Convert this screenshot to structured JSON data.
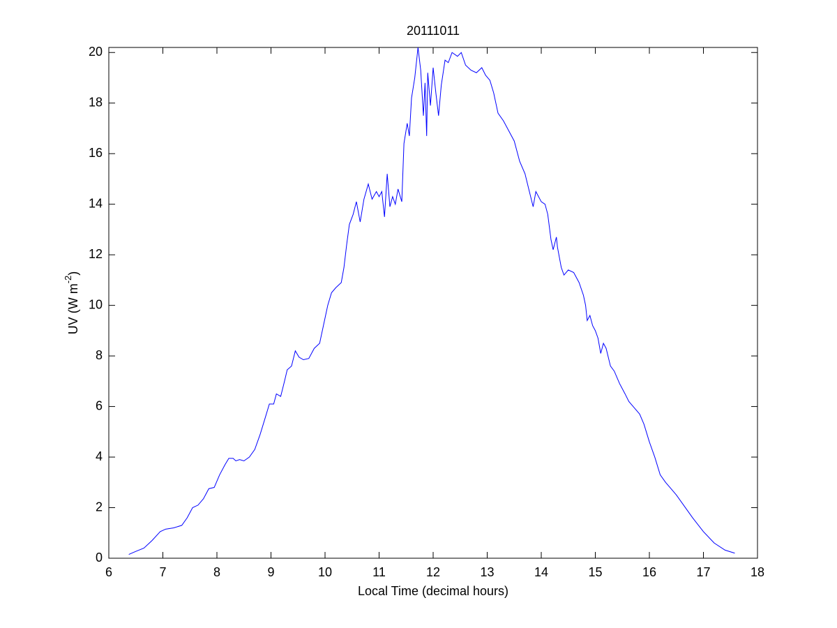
{
  "chart_data": {
    "type": "line",
    "title": "20111011",
    "xlabel": "Local Time (decimal hours)",
    "ylabel": [
      "UV (W m",
      "-2",
      ")"
    ],
    "color": "#0000ff",
    "xlim": [
      6,
      18
    ],
    "xticks": [
      6,
      7,
      8,
      9,
      10,
      11,
      12,
      13,
      14,
      15,
      16,
      17,
      18
    ],
    "ylim": [
      0,
      20.2
    ],
    "yticks": [
      0,
      2,
      4,
      6,
      8,
      10,
      12,
      14,
      16,
      18,
      20
    ],
    "x": [
      6.37,
      6.5,
      6.65,
      6.8,
      6.95,
      7.05,
      7.2,
      7.35,
      7.45,
      7.55,
      7.65,
      7.75,
      7.85,
      7.95,
      8.05,
      8.15,
      8.22,
      8.3,
      8.35,
      8.42,
      8.5,
      8.6,
      8.7,
      8.8,
      8.9,
      8.97,
      9.05,
      9.1,
      9.18,
      9.25,
      9.3,
      9.38,
      9.45,
      9.52,
      9.6,
      9.7,
      9.8,
      9.9,
      9.97,
      10.05,
      10.12,
      10.2,
      10.3,
      10.35,
      10.4,
      10.45,
      10.52,
      10.58,
      10.65,
      10.72,
      10.8,
      10.87,
      10.95,
      11.0,
      11.05,
      11.1,
      11.15,
      11.2,
      11.25,
      11.3,
      11.35,
      11.42,
      11.46,
      11.52,
      11.56,
      11.6,
      11.66,
      11.72,
      11.77,
      11.82,
      11.85,
      11.88,
      11.9,
      11.95,
      12.0,
      12.05,
      12.1,
      12.15,
      12.22,
      12.28,
      12.35,
      12.45,
      12.52,
      12.6,
      12.7,
      12.8,
      12.9,
      12.97,
      13.05,
      13.12,
      13.2,
      13.3,
      13.4,
      13.5,
      13.6,
      13.7,
      13.78,
      13.85,
      13.9,
      14.0,
      14.07,
      14.12,
      14.18,
      14.22,
      14.28,
      14.3,
      14.37,
      14.42,
      14.5,
      14.6,
      14.7,
      14.78,
      14.82,
      14.85,
      14.9,
      14.95,
      15.0,
      15.05,
      15.1,
      15.15,
      15.2,
      15.28,
      15.35,
      15.45,
      15.55,
      15.62,
      15.7,
      15.82,
      15.9,
      16.0,
      16.1,
      16.2,
      16.3,
      16.4,
      16.5,
      16.6,
      16.8,
      17.0,
      17.2,
      17.4,
      17.58
    ],
    "values": [
      0.15,
      0.27,
      0.4,
      0.7,
      1.05,
      1.15,
      1.2,
      1.3,
      1.6,
      2.0,
      2.1,
      2.35,
      2.75,
      2.8,
      3.3,
      3.7,
      3.95,
      3.95,
      3.85,
      3.9,
      3.85,
      4.0,
      4.3,
      4.9,
      5.6,
      6.1,
      6.1,
      6.5,
      6.4,
      7.0,
      7.45,
      7.6,
      8.2,
      7.95,
      7.85,
      7.9,
      8.3,
      8.5,
      9.2,
      10.0,
      10.5,
      10.7,
      10.9,
      11.5,
      12.4,
      13.2,
      13.6,
      14.1,
      13.3,
      14.2,
      14.8,
      14.2,
      14.5,
      14.3,
      14.5,
      13.5,
      15.2,
      13.9,
      14.3,
      14.0,
      14.6,
      14.1,
      16.4,
      17.2,
      16.7,
      18.2,
      19.0,
      20.2,
      19.3,
      17.5,
      18.8,
      16.7,
      19.2,
      17.9,
      19.4,
      18.4,
      17.5,
      18.7,
      19.7,
      19.6,
      20.0,
      19.85,
      20.0,
      19.5,
      19.3,
      19.2,
      19.4,
      19.1,
      18.9,
      18.4,
      17.6,
      17.3,
      16.9,
      16.5,
      15.7,
      15.2,
      14.5,
      13.9,
      14.5,
      14.1,
      14.0,
      13.6,
      12.6,
      12.2,
      12.7,
      12.3,
      11.5,
      11.2,
      11.4,
      11.3,
      10.9,
      10.4,
      10.0,
      9.4,
      9.6,
      9.2,
      9.0,
      8.7,
      8.1,
      8.5,
      8.3,
      7.6,
      7.4,
      6.9,
      6.5,
      6.2,
      6.0,
      5.7,
      5.3,
      4.6,
      4.0,
      3.3,
      3.0,
      2.75,
      2.5,
      2.2,
      1.6,
      1.05,
      0.6,
      0.32,
      0.2
    ]
  }
}
